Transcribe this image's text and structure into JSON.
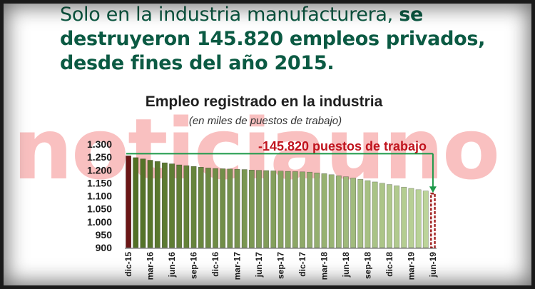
{
  "headline": {
    "lead": "Solo en la industria manufacturera, ",
    "strong": "se destruyeron 145.820 empleos privados, desde fines del año 2015."
  },
  "watermark": "noticiauno",
  "chart_data": {
    "type": "bar",
    "title": "Empleo registrado en la industria",
    "subtitle": "(en miles de puestos de trabajo)",
    "annotation": "-145.820 puestos de trabajo",
    "ylim": [
      900,
      1300
    ],
    "y_ticks": [
      "900",
      "950",
      "1.000",
      "1.050",
      "1.100",
      "1.150",
      "1.200",
      "1.250",
      "1.300"
    ],
    "y_tick_values": [
      900,
      950,
      1000,
      1050,
      1100,
      1150,
      1200,
      1250,
      1300
    ],
    "categories": [
      "dic-15",
      "ene-16",
      "feb-16",
      "mar-16",
      "abr-16",
      "may-16",
      "jun-16",
      "jul-16",
      "ago-16",
      "sep-16",
      "oct-16",
      "nov-16",
      "dic-16",
      "ene-17",
      "feb-17",
      "mar-17",
      "abr-17",
      "may-17",
      "jun-17",
      "jul-17",
      "ago-17",
      "sep-17",
      "oct-17",
      "nov-17",
      "dic-17",
      "ene-18",
      "feb-18",
      "mar-18",
      "abr-18",
      "may-18",
      "jun-18",
      "jul-18",
      "ago-18",
      "sep-18",
      "oct-18",
      "nov-18",
      "dic-18",
      "ene-19",
      "feb-19",
      "mar-19",
      "abr-19",
      "may-19",
      "jun-19"
    ],
    "x_tick_labels": [
      "dic-15",
      "mar-16",
      "jun-16",
      "sep-16",
      "dic-16",
      "mar-17",
      "jun-17",
      "sep-17",
      "dic-17",
      "mar-18",
      "jun-18",
      "sep-18",
      "dic-18",
      "mar-19",
      "jun-19"
    ],
    "values": [
      1255,
      1248,
      1243,
      1238,
      1233,
      1228,
      1224,
      1220,
      1217,
      1214,
      1211,
      1208,
      1206,
      1205,
      1204,
      1203,
      1202,
      1200,
      1199,
      1198,
      1197,
      1196,
      1195,
      1194,
      1193,
      1192,
      1189,
      1186,
      1182,
      1178,
      1174,
      1169,
      1164,
      1159,
      1154,
      1149,
      1144,
      1139,
      1134,
      1129,
      1124,
      1119,
      1109
    ],
    "colors": {
      "first_bar": "#6b1616",
      "last_bar": "#a01e1e",
      "bar_dark": "#4f6e22",
      "bar_light": "#bcd49a",
      "annotation": "#c0141e",
      "arrow": "#1d9a4a"
    }
  }
}
